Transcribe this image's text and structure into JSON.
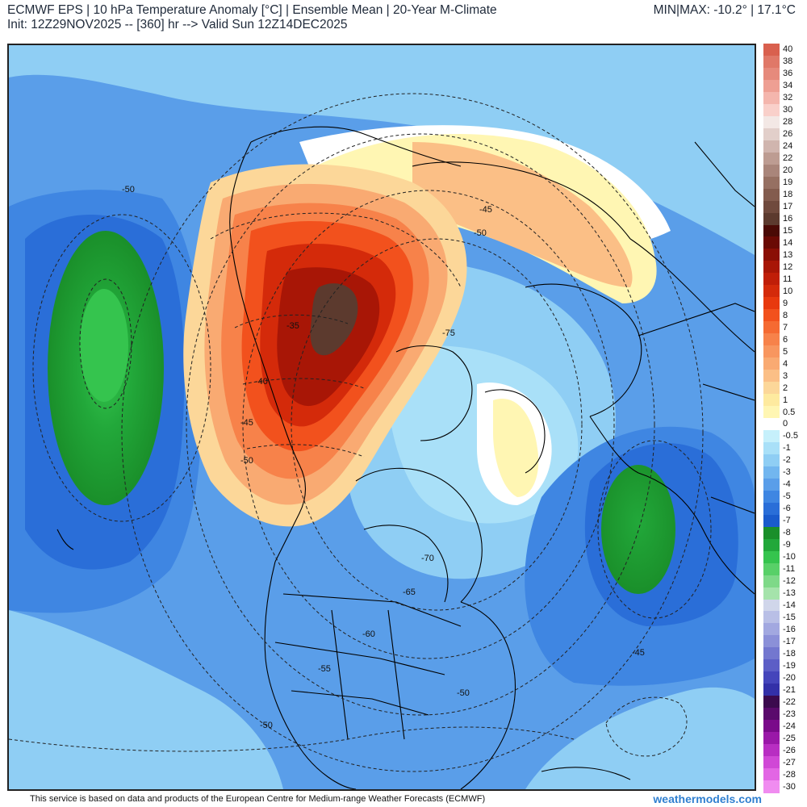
{
  "header": {
    "title": "ECMWF EPS | 10 hPa Temperature Anomaly [°C] | Ensemble Mean | 20-Year M-Climate",
    "init": "Init: 12Z29NOV2025 -- [360] hr --> Valid Sun 12Z14DEC2025",
    "minmax": "MIN|MAX: -10.2° | 17.1°C"
  },
  "map": {
    "contour_labels": [
      "-50",
      "-45",
      "-50",
      "-35",
      "-40",
      "-45",
      "-50",
      "-75",
      "-70",
      "-65",
      "-60",
      "-55",
      "-50",
      "-45",
      "-50"
    ]
  },
  "legend": {
    "items": [
      {
        "label": "40",
        "color": "#d9604e"
      },
      {
        "label": "38",
        "color": "#e07868"
      },
      {
        "label": "36",
        "color": "#e68a7c"
      },
      {
        "label": "34",
        "color": "#ee9f93"
      },
      {
        "label": "32",
        "color": "#f4b6ad"
      },
      {
        "label": "30",
        "color": "#f9d0ca"
      },
      {
        "label": "28",
        "color": "#f3e8e5"
      },
      {
        "label": "26",
        "color": "#e2cfca"
      },
      {
        "label": "24",
        "color": "#d0b5ae"
      },
      {
        "label": "22",
        "color": "#bd9c92"
      },
      {
        "label": "20",
        "color": "#a9857a"
      },
      {
        "label": "19",
        "color": "#967062"
      },
      {
        "label": "18",
        "color": "#835c4e"
      },
      {
        "label": "17",
        "color": "#704a3d"
      },
      {
        "label": "16",
        "color": "#5c3a2e"
      },
      {
        "label": "15",
        "color": "#4a0a05"
      },
      {
        "label": "14",
        "color": "#6a0a04"
      },
      {
        "label": "13",
        "color": "#8a0f05"
      },
      {
        "label": "12",
        "color": "#a81606"
      },
      {
        "label": "11",
        "color": "#c01e08"
      },
      {
        "label": "10",
        "color": "#d42a0a"
      },
      {
        "label": "9",
        "color": "#e8390e"
      },
      {
        "label": "8",
        "color": "#f2511d"
      },
      {
        "label": "7",
        "color": "#f56a32"
      },
      {
        "label": "6",
        "color": "#f7824a"
      },
      {
        "label": "5",
        "color": "#f8965f"
      },
      {
        "label": "4",
        "color": "#f9aa72"
      },
      {
        "label": "3",
        "color": "#fbbf86"
      },
      {
        "label": "2",
        "color": "#fcd799"
      },
      {
        "label": "1",
        "color": "#feea9f"
      },
      {
        "label": "0.5",
        "color": "#fff6b3"
      },
      {
        "label": "0",
        "color": "#ffffff"
      },
      {
        "label": "-0.5",
        "color": "#c6f0fb"
      },
      {
        "label": "-1",
        "color": "#a9e0f8"
      },
      {
        "label": "-2",
        "color": "#8fcef4"
      },
      {
        "label": "-3",
        "color": "#72b6ef"
      },
      {
        "label": "-4",
        "color": "#5a9ee9"
      },
      {
        "label": "-5",
        "color": "#3f86e2"
      },
      {
        "label": "-6",
        "color": "#2a6ed8"
      },
      {
        "label": "-7",
        "color": "#1a5bcc"
      },
      {
        "label": "-8",
        "color": "#1a8f2a"
      },
      {
        "label": "-9",
        "color": "#22a83a"
      },
      {
        "label": "-10",
        "color": "#35c44e"
      },
      {
        "label": "-11",
        "color": "#58d068"
      },
      {
        "label": "-12",
        "color": "#7ed988"
      },
      {
        "label": "-13",
        "color": "#a5e3ab"
      },
      {
        "label": "-14",
        "color": "#d0d6ea"
      },
      {
        "label": "-15",
        "color": "#b9bfe6"
      },
      {
        "label": "-16",
        "color": "#a2a8e0"
      },
      {
        "label": "-17",
        "color": "#8b90d8"
      },
      {
        "label": "-18",
        "color": "#7377cf"
      },
      {
        "label": "-19",
        "color": "#5c5ec6"
      },
      {
        "label": "-20",
        "color": "#4545bb"
      },
      {
        "label": "-21",
        "color": "#3330a8"
      },
      {
        "label": "-22",
        "color": "#3b0a4e"
      },
      {
        "label": "-23",
        "color": "#5a0a6c"
      },
      {
        "label": "-24",
        "color": "#7a0a8a"
      },
      {
        "label": "-25",
        "color": "#9a18a8"
      },
      {
        "label": "-26",
        "color": "#b82ec2"
      },
      {
        "label": "-27",
        "color": "#d048d6"
      },
      {
        "label": "-28",
        "color": "#e266e4"
      },
      {
        "label": "-30",
        "color": "#f08cf0"
      }
    ]
  },
  "footer": {
    "credit": "This service is based on data and products of the European Centre for Medium-range Weather Forecasts (ECMWF)",
    "site": "weathermodels.com"
  }
}
